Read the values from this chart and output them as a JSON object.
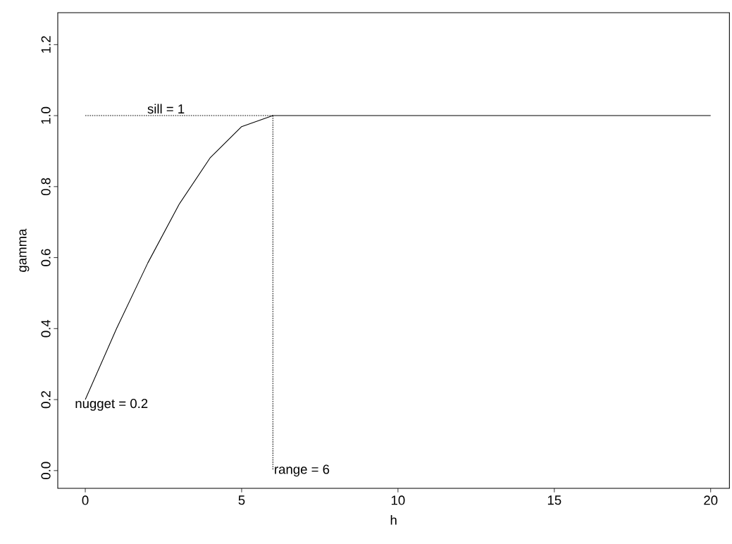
{
  "chart_data": {
    "type": "line",
    "xlabel": "h",
    "ylabel": "gamma",
    "series": [
      {
        "line_style": "solid",
        "color": "#000000",
        "x": [
          0,
          1,
          2,
          3,
          4,
          5,
          6,
          20
        ],
        "values": [
          0.2,
          0.4,
          0.585,
          0.75,
          0.882,
          0.969,
          1.0,
          1.0
        ]
      },
      {
        "line_style": "dotted",
        "color": "#000000",
        "x": [
          0,
          6
        ],
        "values": [
          1.0,
          1.0
        ]
      },
      {
        "line_style": "dotted",
        "color": "#000000",
        "x": [
          6,
          6
        ],
        "values": [
          1.0,
          0.0
        ]
      }
    ],
    "annotations": [
      {
        "text": "sill = 1",
        "x": 3,
        "y": 1.0
      },
      {
        "text": "nugget = 0.2",
        "x": 0,
        "y": 0.2
      },
      {
        "text": "range = 6",
        "x": 6,
        "y": 0.0
      }
    ],
    "xlim": [
      -0.88,
      20.6
    ],
    "ylim": [
      -0.05,
      1.29
    ],
    "xticks": [
      0,
      5,
      10,
      15,
      20
    ],
    "yticks": [
      {
        "value": 0,
        "label": "0.0"
      },
      0.2,
      0.4,
      0.6,
      0.8,
      {
        "value": 1,
        "label": "1.0"
      },
      1.2
    ],
    "grid": false,
    "marker": "none"
  }
}
